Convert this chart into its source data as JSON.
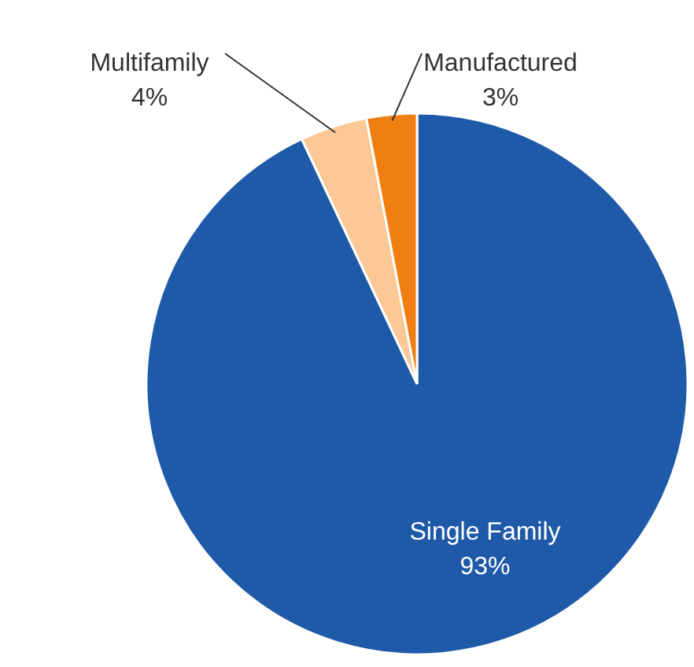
{
  "chart_data": {
    "type": "pie",
    "categories": [
      "Single Family",
      "Multifamily",
      "Manufactured"
    ],
    "values": [
      93,
      4,
      3
    ],
    "colors": [
      "#1f5aa8",
      "#fbc896",
      "#f07f12"
    ],
    "value_labels": [
      "93%",
      "4%",
      "3%"
    ]
  }
}
